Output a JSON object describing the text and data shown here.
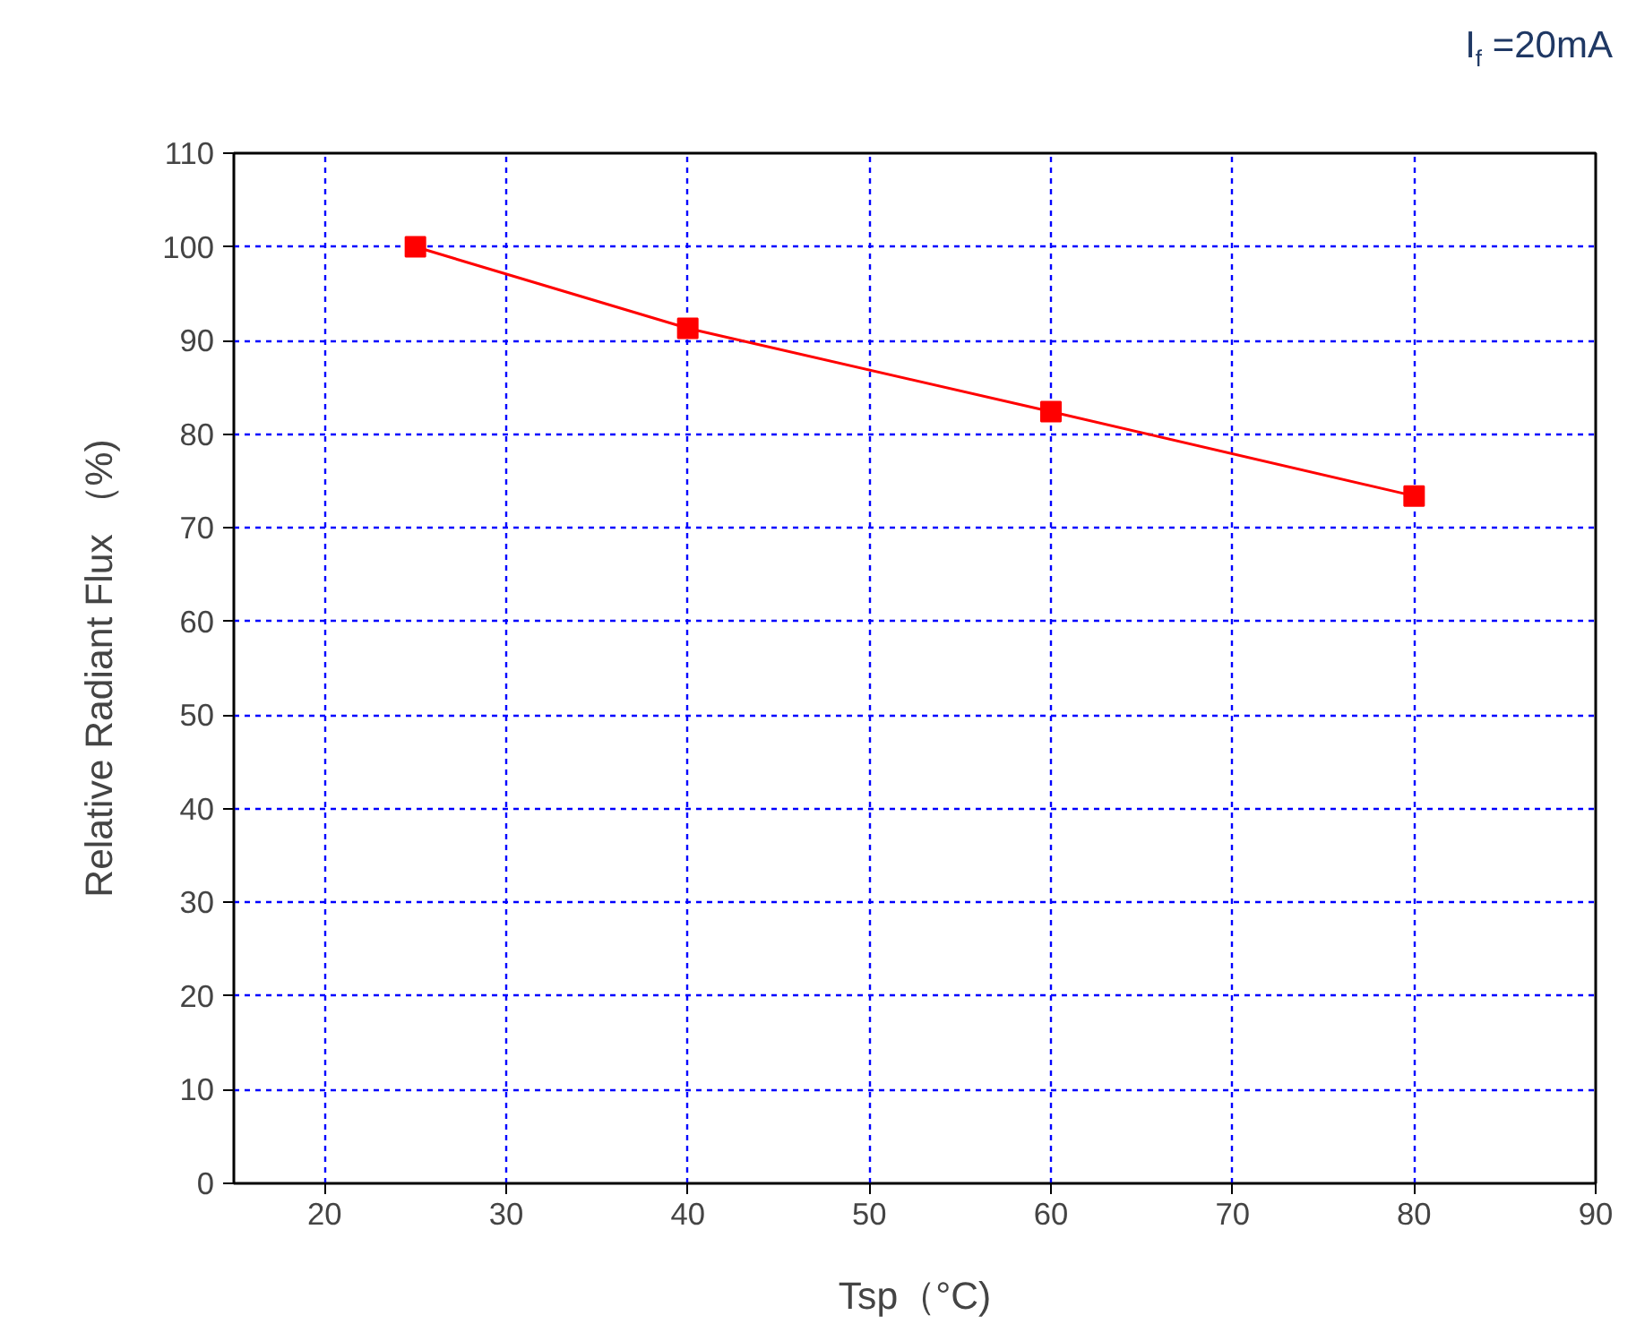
{
  "chart_data": {
    "type": "line",
    "xlabel": "Tsp（°C)",
    "ylabel": "Relative Radiant Flux （%)",
    "x": [
      25,
      40,
      60,
      80
    ],
    "series": [
      {
        "color": "#ff0000",
        "values": [
          100,
          91.3,
          82.4,
          73.4
        ]
      }
    ],
    "xlim": [
      15,
      90
    ],
    "xticks": [
      20,
      30,
      40,
      50,
      60,
      70,
      80,
      90
    ],
    "ylim": [
      0,
      110
    ],
    "yticks": [
      0,
      10,
      20,
      30,
      40,
      50,
      60,
      70,
      80,
      90,
      100,
      110
    ],
    "grid": true,
    "marker": "square",
    "line_style": "solid",
    "annotations": [
      "I$_{f}$ =20mA"
    ]
  }
}
